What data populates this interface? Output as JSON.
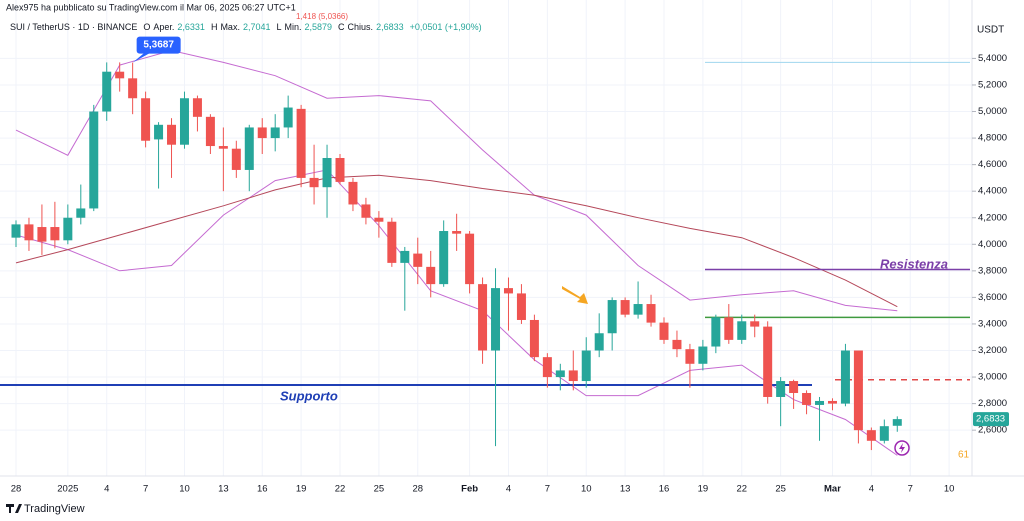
{
  "chart_data": {
    "type": "candlestick",
    "credit": "Alex975 ha pubblicato su TradingView.com il Mar 06, 2025 06:27 UTC+1",
    "cut_text": "1,418 (5,0366)",
    "symbol": "SUI / TetherUS · 1D · BINANCE",
    "ohlc_header": [
      "O",
      "Aper.",
      "2,6331",
      "H",
      "Max.",
      "2,7041",
      "L",
      "Min.",
      "2,5879",
      "C",
      "Chius.",
      "2,6833",
      "+0,0501 (+1,90%)"
    ],
    "currency": "USDT",
    "brand": "TradingView",
    "callout": {
      "label": "5,3687",
      "value": 5.3687
    },
    "last_price": {
      "label": "2,6833",
      "value": 2.6833
    },
    "corner_text": "61",
    "up_color": "#26a69a",
    "down_color": "#ef5350",
    "categories": [
      "28",
      null,
      null,
      null,
      "2025",
      null,
      null,
      "4",
      null,
      null,
      "7",
      null,
      null,
      "10",
      null,
      null,
      "13",
      null,
      null,
      "16",
      null,
      null,
      "19",
      null,
      null,
      "22",
      null,
      null,
      "25",
      null,
      null,
      "28",
      null,
      null,
      null,
      "Feb",
      null,
      null,
      "4",
      null,
      null,
      "7",
      null,
      null,
      "10",
      null,
      null,
      "13",
      null,
      null,
      "16",
      null,
      null,
      "19",
      null,
      null,
      "22",
      null,
      null,
      "25",
      null,
      null,
      null,
      "Mar",
      null,
      null,
      "4",
      null,
      null,
      "7",
      null,
      null,
      "10"
    ],
    "open": [
      4.05,
      4.15,
      4.13,
      4.13,
      4.03,
      4.2,
      4.27,
      5.0,
      5.3,
      5.25,
      5.1,
      4.79,
      4.9,
      4.75,
      5.1,
      4.96,
      4.74,
      4.72,
      4.56,
      4.88,
      4.8,
      4.88,
      5.02,
      4.5,
      4.43,
      4.65,
      4.47,
      4.3,
      4.2,
      4.17,
      3.86,
      3.93,
      3.83,
      3.7,
      4.1,
      4.08,
      3.7,
      3.2,
      3.67,
      3.63,
      3.43,
      3.15,
      3.0,
      3.05,
      2.97,
      3.2,
      3.33,
      3.58,
      3.47,
      3.55,
      3.41,
      3.28,
      3.21,
      3.1,
      3.23,
      3.45,
      3.28,
      3.42,
      3.38,
      2.85,
      2.97,
      2.88,
      2.79,
      2.82,
      2.8,
      3.2,
      2.6,
      2.52,
      2.6331,
      null,
      null,
      null,
      null
    ],
    "high": [
      4.18,
      4.2,
      4.3,
      4.32,
      4.3,
      4.45,
      5.05,
      5.37,
      5.37,
      5.3687,
      5.15,
      4.92,
      4.95,
      5.15,
      5.12,
      4.98,
      4.88,
      4.78,
      4.9,
      4.95,
      4.98,
      5.12,
      5.05,
      4.75,
      4.75,
      4.68,
      4.5,
      4.35,
      4.25,
      4.2,
      3.98,
      4.05,
      3.95,
      4.18,
      4.23,
      4.1,
      3.75,
      3.82,
      3.75,
      3.7,
      3.47,
      3.18,
      3.1,
      3.2,
      3.3,
      3.48,
      3.6,
      3.6,
      3.72,
      3.62,
      3.45,
      3.35,
      3.25,
      3.28,
      3.47,
      3.55,
      3.47,
      3.47,
      3.42,
      3.0,
      2.98,
      2.9,
      2.85,
      2.84,
      3.25,
      3.2,
      2.62,
      2.68,
      2.7041,
      null,
      null,
      null,
      null
    ],
    "low": [
      3.98,
      3.95,
      3.92,
      3.97,
      4.0,
      4.15,
      4.25,
      4.93,
      5.15,
      4.98,
      4.73,
      4.42,
      4.5,
      4.72,
      4.85,
      4.68,
      4.4,
      4.5,
      4.4,
      4.68,
      4.7,
      4.8,
      4.43,
      4.3,
      4.2,
      4.45,
      4.25,
      4.15,
      4.05,
      3.83,
      3.5,
      3.7,
      3.6,
      3.68,
      3.95,
      3.63,
      3.1,
      2.48,
      3.35,
      3.4,
      3.12,
      2.92,
      2.9,
      2.9,
      2.92,
      3.15,
      3.2,
      3.45,
      3.44,
      3.38,
      3.25,
      3.15,
      2.92,
      3.05,
      3.18,
      3.25,
      3.25,
      3.3,
      2.8,
      2.63,
      2.76,
      2.72,
      2.52,
      2.75,
      2.78,
      2.5,
      2.45,
      2.5,
      2.5879,
      null,
      null,
      null,
      null
    ],
    "close": [
      4.15,
      4.03,
      4.02,
      4.03,
      4.2,
      4.27,
      5.0,
      5.3,
      5.25,
      5.1,
      4.78,
      4.9,
      4.75,
      5.1,
      4.96,
      4.74,
      4.72,
      4.56,
      4.88,
      4.8,
      4.88,
      5.03,
      4.5,
      4.43,
      4.65,
      4.47,
      4.3,
      4.2,
      4.17,
      3.86,
      3.95,
      3.83,
      3.7,
      4.1,
      4.08,
      3.7,
      3.2,
      3.67,
      3.63,
      3.43,
      3.15,
      3.0,
      3.05,
      2.97,
      3.2,
      3.33,
      3.58,
      3.47,
      3.55,
      3.41,
      3.28,
      3.21,
      3.1,
      3.23,
      3.45,
      3.28,
      3.42,
      3.38,
      2.85,
      2.97,
      2.88,
      2.79,
      2.82,
      2.8,
      3.2,
      2.6,
      2.52,
      2.63,
      2.6833,
      null,
      null,
      null,
      null
    ],
    "series": [
      {
        "color": "#c56bd1",
        "values": [
          4.86,
          null,
          null,
          null,
          4.67,
          null,
          null,
          null,
          5.35,
          null,
          null,
          null,
          5.46,
          null,
          null,
          null,
          5.37,
          null,
          null,
          null,
          5.27,
          null,
          null,
          null,
          5.1,
          null,
          null,
          null,
          5.12,
          null,
          null,
          null,
          5.08,
          null,
          null,
          null,
          4.71,
          null,
          null,
          null,
          4.37,
          null,
          null,
          null,
          4.22,
          null,
          null,
          null,
          3.84,
          null,
          null,
          null,
          3.58,
          null,
          null,
          null,
          3.62,
          null,
          null,
          null,
          3.65,
          null,
          null,
          null,
          3.54,
          null,
          null,
          null,
          3.5,
          null,
          null,
          null,
          null
        ]
      },
      {
        "color": "#c56bd1",
        "values": [
          4.07,
          null,
          null,
          null,
          3.96,
          null,
          null,
          null,
          3.8,
          null,
          null,
          null,
          3.84,
          null,
          null,
          null,
          4.22,
          null,
          null,
          null,
          4.48,
          null,
          null,
          null,
          4.56,
          null,
          null,
          null,
          4.14,
          null,
          null,
          null,
          3.65,
          null,
          null,
          null,
          3.5,
          null,
          null,
          null,
          3.13,
          null,
          null,
          null,
          2.86,
          null,
          null,
          null,
          2.86,
          null,
          null,
          null,
          3.05,
          null,
          null,
          null,
          3.09,
          null,
          null,
          null,
          2.83,
          null,
          null,
          null,
          2.68,
          null,
          null,
          null,
          2.41,
          null,
          null,
          null,
          null
        ]
      },
      {
        "color": "#b5485a",
        "values": [
          3.86,
          null,
          null,
          null,
          3.96,
          null,
          null,
          null,
          4.07,
          null,
          null,
          null,
          4.18,
          null,
          null,
          null,
          4.29,
          null,
          null,
          null,
          4.41,
          null,
          null,
          null,
          4.5,
          null,
          null,
          null,
          4.52,
          null,
          null,
          null,
          4.48,
          null,
          null,
          null,
          4.42,
          null,
          null,
          null,
          4.37,
          null,
          null,
          null,
          4.29,
          null,
          null,
          null,
          4.2,
          null,
          null,
          null,
          4.12,
          null,
          null,
          null,
          4.05,
          null,
          null,
          null,
          3.9,
          null,
          null,
          null,
          3.73,
          null,
          null,
          null,
          3.53,
          null,
          null,
          null,
          null
        ]
      }
    ],
    "levels": [
      {
        "label": "Supporto",
        "value": 2.94,
        "color": "#1f3fb5"
      },
      {
        "label": "Resistenza",
        "value": 3.81,
        "color": "#7b3fa8"
      },
      {
        "value": 3.45,
        "color": "#3f9a3f"
      },
      {
        "value": 2.98,
        "color": "#e04848"
      },
      {
        "value": 5.37,
        "color": "#9fd6ee"
      }
    ],
    "ylim": [
      2.3,
      5.84
    ],
    "yticks": [
      {
        "value": 2.6,
        "label": "2,6000"
      },
      {
        "value": 2.8,
        "label": "2,8000"
      },
      {
        "value": 3.0,
        "label": "3,0000"
      },
      {
        "value": 3.2,
        "label": "3,2000"
      },
      {
        "value": 3.4,
        "label": "3,4000"
      },
      {
        "value": 3.6,
        "label": "3,6000"
      },
      {
        "value": 3.8,
        "label": "3,8000"
      },
      {
        "value": 4.0,
        "label": "4,0000"
      },
      {
        "value": 4.2,
        "label": "4,2000"
      },
      {
        "value": 4.4,
        "label": "4,4000"
      },
      {
        "value": 4.6,
        "label": "4,6000"
      },
      {
        "value": 4.8,
        "label": "4,8000"
      },
      {
        "value": 5.0,
        "label": "5,0000"
      },
      {
        "value": 5.2,
        "label": "5,2000"
      },
      {
        "value": 5.4,
        "label": "5,4000"
      }
    ],
    "grid": true
  }
}
